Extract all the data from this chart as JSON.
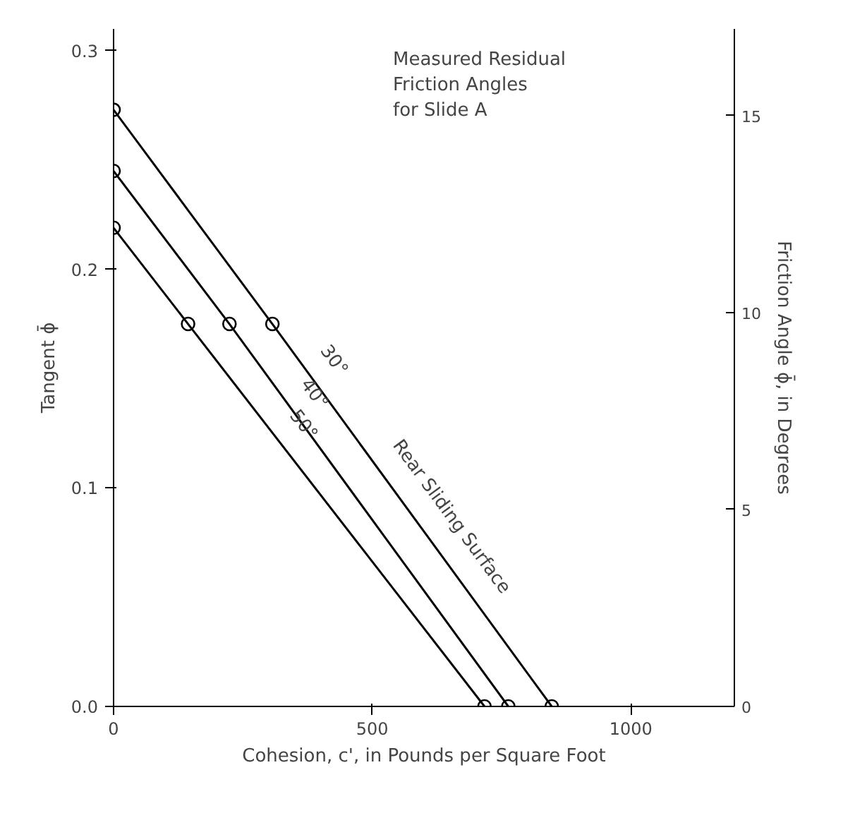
{
  "chart_data": {
    "type": "line",
    "xlabel": "Cohesion, c', in Pounds per Square Foot",
    "ylabel": "Tangent ϕ̄",
    "y2label": "Friction Angle ϕ̄, in Degrees",
    "xlim": [
      0,
      1200
    ],
    "ylim": [
      0,
      0.31
    ],
    "xticks": [
      0,
      500,
      1000
    ],
    "y2lim": [
      0,
      17.2
    ],
    "yticks": [
      {
        "value": 0,
        "label": "0.0"
      },
      0.1,
      0.2,
      0.3
    ],
    "y2ticks": [
      0,
      5,
      10,
      15
    ],
    "series": [
      {
        "name": "30°",
        "color": "#000000",
        "x": [
          0,
          307,
          847
        ],
        "values": [
          0.273,
          0.175,
          0
        ]
      },
      {
        "name": "40°",
        "color": "#000000",
        "x": [
          0,
          224,
          763
        ],
        "values": [
          0.245,
          0.175,
          0
        ]
      },
      {
        "name": "50°",
        "color": "#000000",
        "x": [
          0,
          144,
          717
        ],
        "values": [
          0.219,
          0.175,
          0
        ]
      }
    ],
    "annotations": [
      "Measured Residual\nFriction Angles\nfor Slide A",
      "Rear  Sliding  Surface"
    ],
    "marker": "circle",
    "line_style": "solid",
    "grid": false,
    "legend": false
  }
}
